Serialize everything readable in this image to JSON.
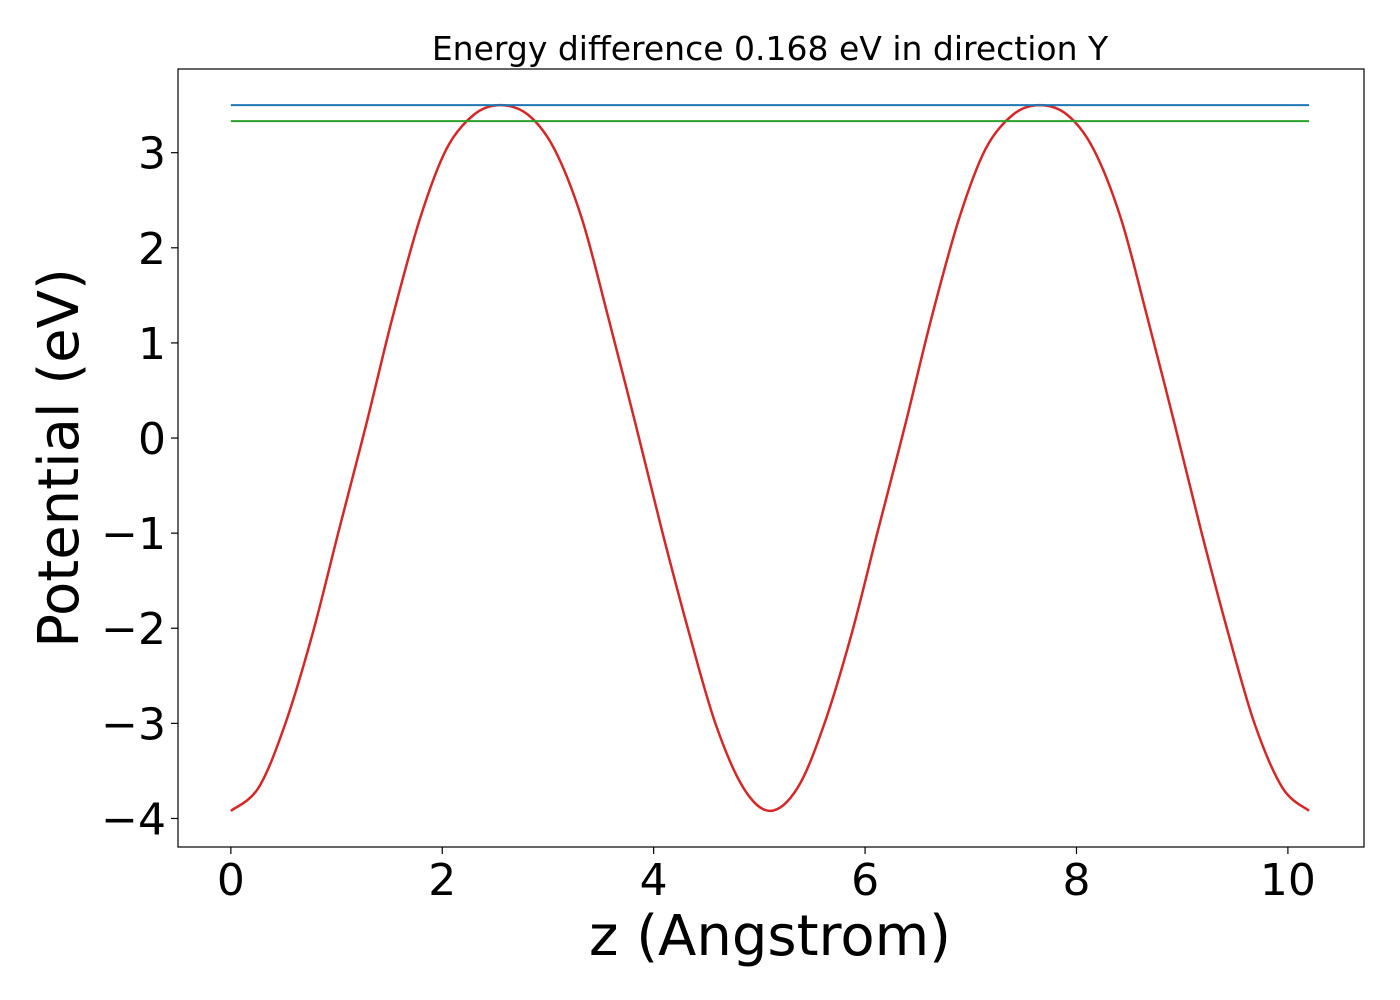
{
  "chart_data": {
    "type": "line",
    "title": "Energy difference 0.168 eV in direction Y",
    "xlabel": "z (Angstrom)",
    "ylabel": "Potential (eV)",
    "xlim": [
      -0.5,
      10.72
    ],
    "ylim": [
      -4.3,
      3.88
    ],
    "x_ticks": [
      0,
      2,
      4,
      6,
      8,
      10
    ],
    "x_tick_labels": [
      "0",
      "2",
      "4",
      "6",
      "8",
      "10"
    ],
    "y_ticks": [
      -4,
      -3,
      -2,
      -1,
      0,
      1,
      2,
      3
    ],
    "y_tick_labels": [
      "−4",
      "−3",
      "−2",
      "−1",
      "0",
      "1",
      "2",
      "3"
    ],
    "grid": false,
    "legend": "none",
    "series": [
      {
        "kind": "curve",
        "color": "#d62728",
        "x": [
          0.0,
          0.26,
          0.51,
          0.77,
          1.02,
          1.28,
          1.53,
          1.79,
          2.04,
          2.3,
          2.55,
          2.81,
          3.06,
          3.32,
          3.57,
          3.83,
          4.08,
          4.34,
          4.59,
          4.85,
          5.1,
          5.36,
          5.61,
          5.87,
          6.12,
          6.38,
          6.63,
          6.89,
          7.14,
          7.4,
          7.65,
          7.91,
          8.16,
          8.42,
          8.67,
          8.93,
          9.18,
          9.44,
          9.69,
          9.95,
          10.2
        ],
        "y": [
          -3.92,
          -3.68,
          -3.02,
          -2.07,
          -0.98,
          0.14,
          1.27,
          2.31,
          3.04,
          3.4,
          3.5,
          3.4,
          3.04,
          2.31,
          1.27,
          0.14,
          -0.98,
          -2.07,
          -3.02,
          -3.68,
          -3.92,
          -3.68,
          -3.02,
          -2.07,
          -0.98,
          0.14,
          1.27,
          2.31,
          3.04,
          3.4,
          3.5,
          3.4,
          3.04,
          2.31,
          1.27,
          0.14,
          -0.98,
          -2.07,
          -3.02,
          -3.68,
          -3.92
        ]
      },
      {
        "kind": "hline",
        "color": "#1f77b4",
        "y": 3.5,
        "x": [
          0,
          10.2
        ]
      },
      {
        "kind": "hline",
        "color": "#2ca02c",
        "y": 3.332,
        "x": [
          0,
          10.2
        ]
      }
    ]
  }
}
